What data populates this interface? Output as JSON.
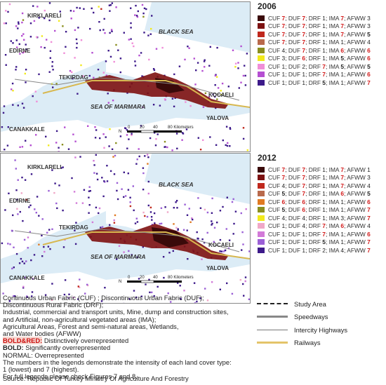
{
  "maps": [
    {
      "year": "2006",
      "labels": {
        "kirklareli": "KIRKLARELI",
        "edirne": "EDIRNE",
        "tekirdag": "TEKIRDAG",
        "canakkale": "CANAKKALE",
        "black_sea": "BLACK SEA",
        "marmara": "SEA OF MARMARA",
        "kocaeli": "KOCAELI",
        "yalova": "YALOVA"
      },
      "scale": {
        "t0": "0",
        "t1": "20",
        "t2": "40",
        "t3": "80 Kilometers",
        "north": "N"
      },
      "legend": [
        {
          "color": "#3a0a0a",
          "a": "7",
          "b": "7",
          "c": "1",
          "d": "7",
          "e": "3"
        },
        {
          "color": "#7d1111",
          "a": "7",
          "b": "7",
          "c": "1",
          "d": "7",
          "e": "3"
        },
        {
          "color": "#c0281d",
          "a": "7",
          "b": "7",
          "c": "1",
          "d": "7",
          "e": "5"
        },
        {
          "color": "#b96a4c",
          "a": "7",
          "b": "7",
          "c": "1",
          "d": "1",
          "e": "4"
        },
        {
          "color": "#8a8f1f",
          "a": "4",
          "b": "7",
          "c": "1",
          "d": "6",
          "e": "6"
        },
        {
          "color": "#f2ea1c",
          "a": "3",
          "b": "6",
          "c": "1",
          "d": "5",
          "e": "6"
        },
        {
          "color": "#f08ed8",
          "a": "1",
          "b": "2",
          "c": "7",
          "d": "5",
          "e": "5"
        },
        {
          "color": "#b54fd2",
          "a": "1",
          "b": "1",
          "c": "7",
          "d": "1",
          "e": "6"
        },
        {
          "color": "#3d1a8a",
          "a": "1",
          "b": "1",
          "c": "5",
          "d": "1",
          "e": "7"
        }
      ]
    },
    {
      "year": "2012",
      "labels": {
        "kirklareli": "KIRKLARELI",
        "edirne": "EDIRNE",
        "tekirdag": "TEKIRDAG",
        "canakkale": "CANAKKALE",
        "black_sea": "BLACK SEA",
        "marmara": "SEA OF MARMARA",
        "kocaeli": "KOCAELI",
        "yalova": "YALOVA"
      },
      "scale": {
        "t0": "0",
        "t1": "20",
        "t2": "40",
        "t3": "80 Kilometers",
        "north": "N"
      },
      "legend": [
        {
          "color": "#3a0a0a",
          "a": "7",
          "b": "7",
          "c": "1",
          "d": "7",
          "e": "1"
        },
        {
          "color": "#7d1111",
          "a": "7",
          "b": "7",
          "c": "1",
          "d": "7",
          "e": "3"
        },
        {
          "color": "#c0281d",
          "a": "4",
          "b": "7",
          "c": "1",
          "d": "7",
          "e": "4"
        },
        {
          "color": "#b96a4c",
          "a": "5",
          "b": "7",
          "c": "1",
          "d": "6",
          "e": "5"
        },
        {
          "color": "#e07a22",
          "a": "6",
          "b": "6",
          "c": "1",
          "d": "1",
          "e": "6"
        },
        {
          "color": "#8a8f1f",
          "a": "5",
          "b": "6",
          "c": "1",
          "d": "1",
          "e": "7"
        },
        {
          "color": "#f2ea1c",
          "a": "4",
          "b": "4",
          "c": "1",
          "d": "3",
          "e": "7"
        },
        {
          "color": "#f0a8c8",
          "a": "1",
          "b": "4",
          "c": "7",
          "d": "6",
          "e": "4"
        },
        {
          "color": "#d27ad8",
          "a": "1",
          "b": "1",
          "c": "7",
          "d": "1",
          "e": "6"
        },
        {
          "color": "#9b5fd6",
          "a": "1",
          "b": "1",
          "c": "5",
          "d": "1",
          "e": "7"
        },
        {
          "color": "#3d1a8a",
          "a": "1",
          "b": "1",
          "c": "2",
          "d": "4",
          "e": "7"
        }
      ]
    }
  ],
  "notes": {
    "l1": "Continuous Urban Fabric (CUF) ; Discontinuous Urban Fabric (DUF);",
    "l2": "Discontinuous Rural Fabric (DRF);",
    "l3": "Industrial, commercial and transport units, Mine, dump and construction sites,",
    "l4": "and Artificial, non-agricultural vegetated areas (IMA);",
    "l5": "Agricultural Areas, Forest and semi-natural areas, Wetlands,",
    "l6": "and Water bodies (AFWW)",
    "bred_key": "BOLD&RED:",
    "bred_val": " Distinctively overrepresented",
    "bold_key": "BOLD:",
    "bold_val": " Significantly overrepresented",
    "normal": "NORMAL: Overrepresented",
    "l7": "The numbers in the legends demonstrate the intensity of each land cover type:",
    "l8": "1 (lowest) and 7 (highest).",
    "l9": "For full legends please check Figures 7 and 8."
  },
  "map_legend": [
    {
      "label": "Study Area"
    },
    {
      "label": "Speedways"
    },
    {
      "label": "Intercity Highways"
    },
    {
      "label": "Railways"
    }
  ],
  "source": "Source: Republic Of Turkey Ministry Of Agriculture And Forestry"
}
